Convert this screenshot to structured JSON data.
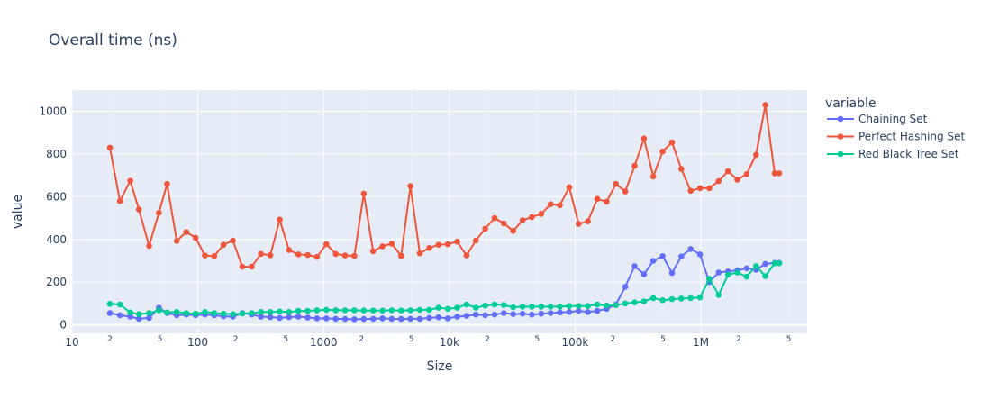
{
  "chart_data": {
    "type": "line",
    "title": "Overall time (ns)",
    "xlabel": "Size",
    "ylabel": "value",
    "x_scale": "log",
    "xlim": [
      10,
      7000000
    ],
    "ylim": [
      -40,
      1100
    ],
    "grid": true,
    "legend_title": "variable",
    "legend_position": "right",
    "y_ticks": [
      0,
      200,
      400,
      600,
      800,
      1000
    ],
    "y_tick_labels": [
      "0",
      "200",
      "400",
      "600",
      "800",
      "1000"
    ],
    "x_ticks": [
      10,
      100,
      1000,
      10000,
      100000,
      1000000
    ],
    "x_tick_labels": [
      "10",
      "100",
      "1000",
      "10k",
      "100k",
      "1M"
    ],
    "x_minor_ticks": [
      20,
      50,
      200,
      500,
      2000,
      5000,
      20000,
      50000,
      200000,
      500000,
      2000000,
      5000000
    ],
    "x_minor_labels": [
      "2",
      "5",
      "2",
      "5",
      "2",
      "5",
      "2",
      "5",
      "2",
      "5",
      "2",
      "5"
    ],
    "x": [
      20,
      24,
      29,
      34,
      41,
      49,
      57,
      68,
      81,
      96,
      114,
      135,
      160,
      190,
      226,
      268,
      318,
      377,
      448,
      531,
      630,
      748,
      887,
      1053,
      1249,
      1482,
      1759,
      2087,
      2476,
      2938,
      3486,
      4136,
      4907,
      5822,
      6908,
      8197,
      9725,
      11540,
      13690,
      16240,
      19270,
      22870,
      27130,
      32190,
      38190,
      45320,
      53770,
      63790,
      75690,
      89810,
      106600,
      126400,
      150000,
      178000,
      211200,
      250600,
      297300,
      352800,
      418600,
      496600,
      589300,
      699100,
      829500,
      984200,
      1168000,
      1386000,
      1644000,
      1950000,
      2314000,
      2746000,
      3258000,
      3865000,
      4200000
    ],
    "series": [
      {
        "name": "Chaining Set",
        "color": "#636efa",
        "values": [
          55,
          45,
          38,
          28,
          32,
          80,
          55,
          45,
          48,
          45,
          48,
          45,
          40,
          38,
          55,
          48,
          38,
          36,
          32,
          36,
          38,
          34,
          30,
          30,
          28,
          27,
          26,
          27,
          28,
          30,
          28,
          27,
          28,
          28,
          32,
          35,
          30,
          38,
          42,
          48,
          45,
          48,
          55,
          50,
          52,
          48,
          52,
          55,
          58,
          60,
          65,
          60,
          65,
          75,
          95,
          178,
          275,
          237,
          300,
          322,
          243,
          320,
          355,
          330,
          200,
          245,
          250,
          255,
          265,
          258,
          285,
          290,
          290
        ]
      },
      {
        "name": "Perfect Hashing Set",
        "color": "#ef553b",
        "values": [
          830,
          580,
          675,
          540,
          370,
          525,
          660,
          393,
          435,
          408,
          325,
          322,
          375,
          395,
          272,
          272,
          332,
          326,
          493,
          350,
          330,
          327,
          318,
          378,
          332,
          325,
          323,
          615,
          345,
          368,
          380,
          323,
          650,
          335,
          360,
          375,
          378,
          390,
          325,
          395,
          450,
          500,
          475,
          440,
          490,
          505,
          520,
          565,
          560,
          645,
          473,
          485,
          590,
          577,
          660,
          625,
          745,
          873,
          695,
          812,
          855,
          730,
          628,
          640,
          640,
          673,
          720,
          680,
          706,
          797,
          1030,
          710,
          710
        ]
      },
      {
        "name": "Red Black Tree Set",
        "color": "#00cc96",
        "values": [
          98,
          95,
          58,
          50,
          55,
          68,
          58,
          60,
          55,
          52,
          60,
          55,
          52,
          50,
          53,
          55,
          60,
          60,
          62,
          60,
          65,
          65,
          68,
          70,
          68,
          68,
          68,
          67,
          67,
          67,
          68,
          67,
          68,
          70,
          70,
          80,
          75,
          80,
          95,
          80,
          90,
          95,
          93,
          82,
          85,
          85,
          85,
          85,
          85,
          88,
          88,
          88,
          95,
          90,
          92,
          100,
          105,
          110,
          125,
          115,
          120,
          123,
          125,
          128,
          215,
          140,
          235,
          245,
          225,
          275,
          228,
          288,
          288
        ]
      }
    ]
  }
}
